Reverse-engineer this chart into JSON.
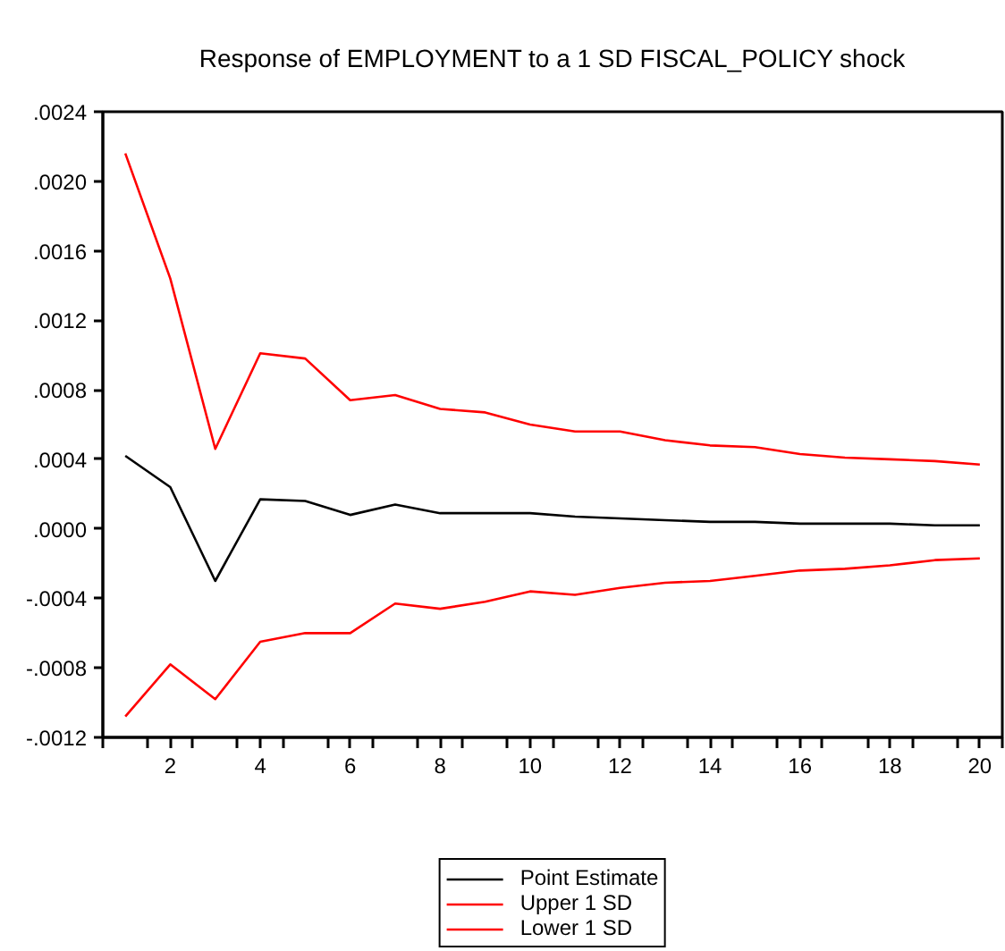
{
  "chart_data": {
    "type": "line",
    "title": "Response of EMPLOYMENT to a 1 SD FISCAL_POLICY shock",
    "x": [
      1,
      2,
      3,
      4,
      5,
      6,
      7,
      8,
      9,
      10,
      11,
      12,
      13,
      14,
      15,
      16,
      17,
      18,
      19,
      20
    ],
    "series": [
      {
        "name": "Point Estimate",
        "color": "#000000",
        "values": [
          0.00042,
          0.00024,
          -0.0003,
          0.00017,
          0.00016,
          8e-05,
          0.00014,
          9e-05,
          9e-05,
          9e-05,
          7e-05,
          6e-05,
          5e-05,
          4e-05,
          4e-05,
          3e-05,
          3e-05,
          3e-05,
          2e-05,
          2e-05
        ]
      },
      {
        "name": "Upper 1 SD",
        "color": "#ff0000",
        "values": [
          0.00216,
          0.00144,
          0.00046,
          0.00101,
          0.00098,
          0.00074,
          0.00077,
          0.00069,
          0.00067,
          0.0006,
          0.00056,
          0.00056,
          0.00051,
          0.00048,
          0.00047,
          0.00043,
          0.00041,
          0.0004,
          0.00039,
          0.00037
        ]
      },
      {
        "name": "Lower 1 SD",
        "color": "#ff0000",
        "values": [
          -0.00108,
          -0.00078,
          -0.00098,
          -0.00065,
          -0.0006,
          -0.0006,
          -0.00043,
          -0.00046,
          -0.00042,
          -0.00036,
          -0.00038,
          -0.00034,
          -0.00031,
          -0.0003,
          -0.00027,
          -0.00024,
          -0.00023,
          -0.00021,
          -0.00018,
          -0.00017
        ]
      }
    ],
    "xlim": [
      0.5,
      20.5
    ],
    "xticks": [
      {
        "value": 0.5,
        "label": null
      },
      {
        "value": 1.5,
        "label": null
      },
      2,
      {
        "value": 2.5,
        "label": null
      },
      {
        "value": 3.5,
        "label": null
      },
      4,
      {
        "value": 4.5,
        "label": null
      },
      {
        "value": 5.5,
        "label": null
      },
      6,
      {
        "value": 6.5,
        "label": null
      },
      {
        "value": 7.5,
        "label": null
      },
      8,
      {
        "value": 8.5,
        "label": null
      },
      {
        "value": 9.5,
        "label": null
      },
      10,
      {
        "value": 10.5,
        "label": null
      },
      {
        "value": 11.5,
        "label": null
      },
      12,
      {
        "value": 12.5,
        "label": null
      },
      {
        "value": 13.5,
        "label": null
      },
      14,
      {
        "value": 14.5,
        "label": null
      },
      {
        "value": 15.5,
        "label": null
      },
      16,
      {
        "value": 16.5,
        "label": null
      },
      {
        "value": 17.5,
        "label": null
      },
      18,
      {
        "value": 18.5,
        "label": null
      },
      {
        "value": 19.5,
        "label": null
      },
      20,
      {
        "value": 20.5,
        "label": null
      }
    ],
    "ylim": [
      -0.0012,
      0.0024
    ],
    "yticks": [
      {
        "value": -0.0012,
        "label": "-.0012"
      },
      {
        "value": -0.0008,
        "label": "-.0008"
      },
      {
        "value": -0.0004,
        "label": "-.0004"
      },
      {
        "value": 0,
        "label": ".0000"
      },
      {
        "value": 0.0004,
        "label": ".0004"
      },
      {
        "value": 0.0008,
        "label": ".0008"
      },
      {
        "value": 0.0012,
        "label": ".0012"
      },
      {
        "value": 0.0016,
        "label": ".0016"
      },
      {
        "value": 0.002,
        "label": ".0020"
      },
      {
        "value": 0.0024,
        "label": ".0024"
      }
    ],
    "grid": false,
    "legend": "bottom"
  }
}
